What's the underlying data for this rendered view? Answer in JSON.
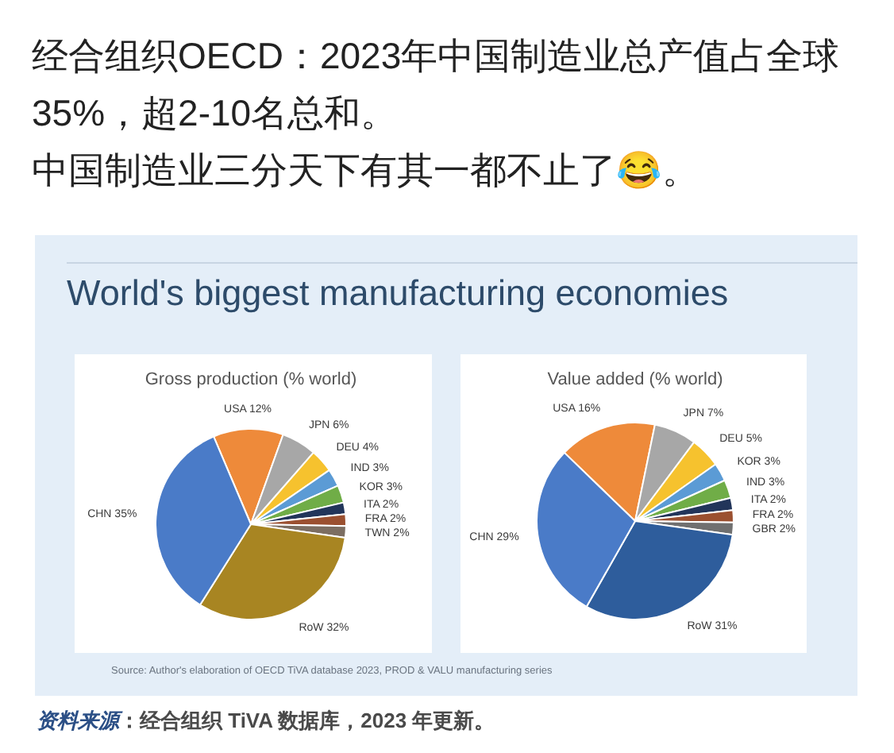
{
  "chart_data": [
    {
      "type": "other",
      "annotations": [
        "经合组织OECD：2023年中国制造业总产值占全球35%，超2-10名总和。",
        "中国制造业三分天下有其一都不止了😂。"
      ]
    },
    {
      "type": "other",
      "title": "World's biggest manufacturing economies"
    },
    {
      "type": "pie",
      "title": "Gross production (% world)",
      "categories": [
        "USA",
        "JPN",
        "DEU",
        "IND",
        "KOR",
        "ITA",
        "FRA",
        "TWN",
        "RoW",
        "CHN"
      ],
      "values": [
        12,
        6,
        4,
        3,
        3,
        2,
        2,
        2,
        32,
        35
      ],
      "value_labels": [
        "12%",
        "6%",
        "4%",
        "3%",
        "3%",
        "2%",
        "2%",
        "2%",
        "32%",
        "35%"
      ],
      "colors": [
        "#ee8a3a",
        "#a7a7a7",
        "#f6c22e",
        "#5b9bd5",
        "#70ad47",
        "#22355a",
        "#9b5030",
        "#7c6e62",
        "#a88522",
        "#4a7bc8"
      ]
    },
    {
      "type": "pie",
      "title": "Value added (% world)",
      "categories": [
        "USA",
        "JPN",
        "DEU",
        "KOR",
        "IND",
        "ITA",
        "FRA",
        "GBR",
        "RoW",
        "CHN"
      ],
      "values": [
        16,
        7,
        5,
        3,
        3,
        2,
        2,
        2,
        31,
        29
      ],
      "value_labels": [
        "16%",
        "7%",
        "5%",
        "3%",
        "3%",
        "2%",
        "2%",
        "2%",
        "31%",
        "29%"
      ],
      "colors": [
        "#ee8a3a",
        "#a7a7a7",
        "#f6c22e",
        "#5b9bd5",
        "#70ad47",
        "#22355a",
        "#9b5030",
        "#707070",
        "#2e5d9c",
        "#4a7bc8"
      ]
    },
    {
      "type": "other",
      "annotations": [
        "Source: Author's elaboration of OECD TiVA database 2023, PROD & VALU manufacturing series",
        "资料来源",
        "：经合组织 TiVA 数据库，2023 年更新。"
      ]
    }
  ]
}
